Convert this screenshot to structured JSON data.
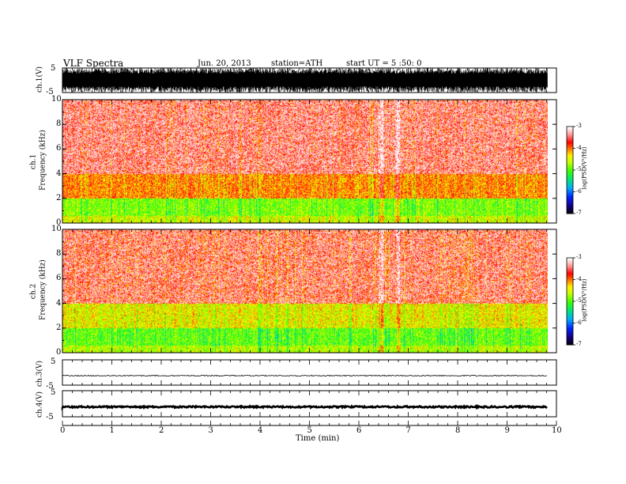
{
  "header": {
    "title": "VLF  Spectra",
    "date": "Jun. 20, 2013",
    "station": "station=ATH",
    "start": "start  UT  =   5  :50: 0"
  },
  "chart_data": {
    "type": "heatmap",
    "xlabel": "Time  (min)",
    "xlim": [
      0,
      10
    ],
    "xticks": [
      "0",
      "1",
      "2",
      "3",
      "4",
      "5",
      "6",
      "7",
      "8",
      "9",
      "10"
    ],
    "panels": [
      {
        "kind": "waveform",
        "label": "ch.1(V)",
        "ylim": [
          -5,
          5
        ],
        "yticks": [
          "5",
          "-5"
        ],
        "amplitude": "saturated"
      },
      {
        "kind": "spectrogram",
        "label_ch": "ch.1",
        "label_y": "Frequency  (kHz)",
        "ylim": [
          0,
          10
        ],
        "yticks": [
          "0",
          "2",
          "4",
          "6",
          "8",
          "10"
        ],
        "bands": [
          {
            "from": 0,
            "to": 0.6,
            "level": -4.5
          },
          {
            "from": 0.6,
            "to": 2,
            "level": -4.8
          },
          {
            "from": 2,
            "to": 4,
            "level": -4.0
          },
          {
            "from": 4,
            "to": 10,
            "level": -3.6
          }
        ]
      },
      {
        "kind": "spectrogram",
        "label_ch": "ch.2",
        "label_y": "Frequency  (kHz)",
        "ylim": [
          0,
          10
        ],
        "yticks": [
          "0",
          "2",
          "4",
          "6",
          "8",
          "10"
        ],
        "bands": [
          {
            "from": 0,
            "to": 0.6,
            "level": -4.6
          },
          {
            "from": 0.6,
            "to": 2,
            "level": -4.9
          },
          {
            "from": 2,
            "to": 4,
            "level": -4.4
          },
          {
            "from": 4,
            "to": 10,
            "level": -3.7
          }
        ]
      },
      {
        "kind": "waveform",
        "label": "ch.3(V)",
        "ylim": [
          -5,
          5
        ],
        "yticks": [
          "5",
          "-5"
        ],
        "amplitude": 0.2
      },
      {
        "kind": "waveform",
        "label": "ch.4(V)",
        "ylim": [
          -5,
          5
        ],
        "yticks": [
          "5",
          "-5"
        ],
        "amplitude": 0.3
      }
    ],
    "colorbar": {
      "label": "log(PSD(V²/Hz)",
      "ticks": [
        "-3",
        "-4",
        "-5",
        "-6",
        "-7"
      ],
      "range": [
        -7,
        -3
      ]
    },
    "data_end_min": 9.82,
    "gap_intervals_min": [
      [
        6.4,
        6.48
      ],
      [
        6.75,
        6.82
      ]
    ]
  }
}
